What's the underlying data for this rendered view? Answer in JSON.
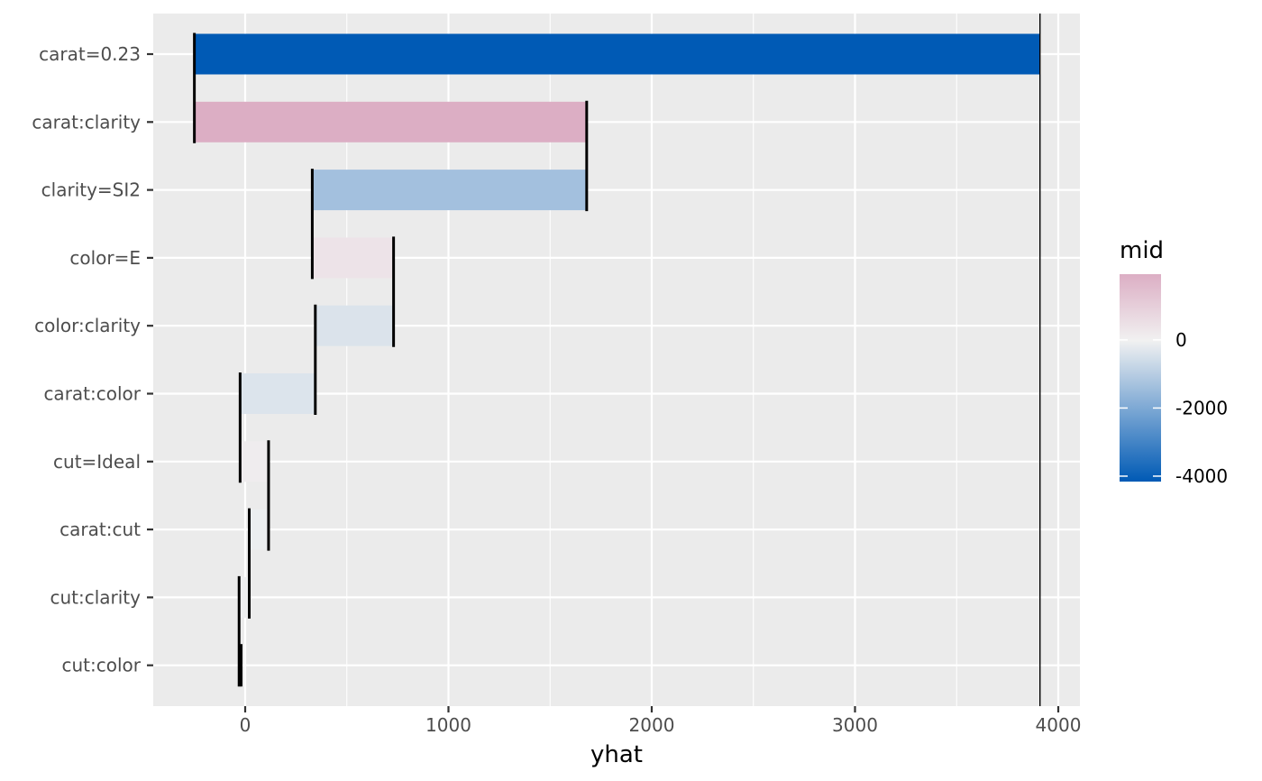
{
  "chart_data": {
    "type": "bar",
    "chart_kind": "waterfall",
    "xlabel": "yhat",
    "ylabel": "",
    "xlim": [
      -450,
      4100
    ],
    "x_ticks": [
      0,
      1000,
      2000,
      3000,
      4000
    ],
    "x_tick_labels": [
      "0",
      "1000",
      "2000",
      "3000",
      "4000"
    ],
    "reference_line": 3910,
    "categories": [
      "carat=0.23",
      "carat:clarity",
      "clarity=SI2",
      "color=E",
      "color:clarity",
      "carat:color",
      "cut=Ideal",
      "carat:cut",
      "cut:clarity",
      "cut:color"
    ],
    "bars": [
      {
        "start": 3910,
        "end": -250,
        "mid": -4160
      },
      {
        "start": -250,
        "end": 1680,
        "mid": 1930
      },
      {
        "start": 1680,
        "end": 330,
        "mid": -1350
      },
      {
        "start": 330,
        "end": 730,
        "mid": 400
      },
      {
        "start": 730,
        "end": 345,
        "mid": -385
      },
      {
        "start": 345,
        "end": -25,
        "mid": -370
      },
      {
        "start": -25,
        "end": 115,
        "mid": 140
      },
      {
        "start": 115,
        "end": 20,
        "mid": -95
      },
      {
        "start": 20,
        "end": -30,
        "mid": -50
      },
      {
        "start": -30,
        "end": -20,
        "mid": 10
      }
    ],
    "legend": {
      "title": "mid",
      "position": "right",
      "range": [
        -4160,
        1930
      ],
      "ticks": [
        0,
        -2000,
        -4000
      ],
      "tick_labels": [
        "0",
        "-2000",
        "-4000"
      ],
      "low_color": "#005ab5",
      "mid_color": "#f1f1f1",
      "high_color": "#dcaec4"
    },
    "panel_background": "#ebebeb",
    "grid": true
  }
}
